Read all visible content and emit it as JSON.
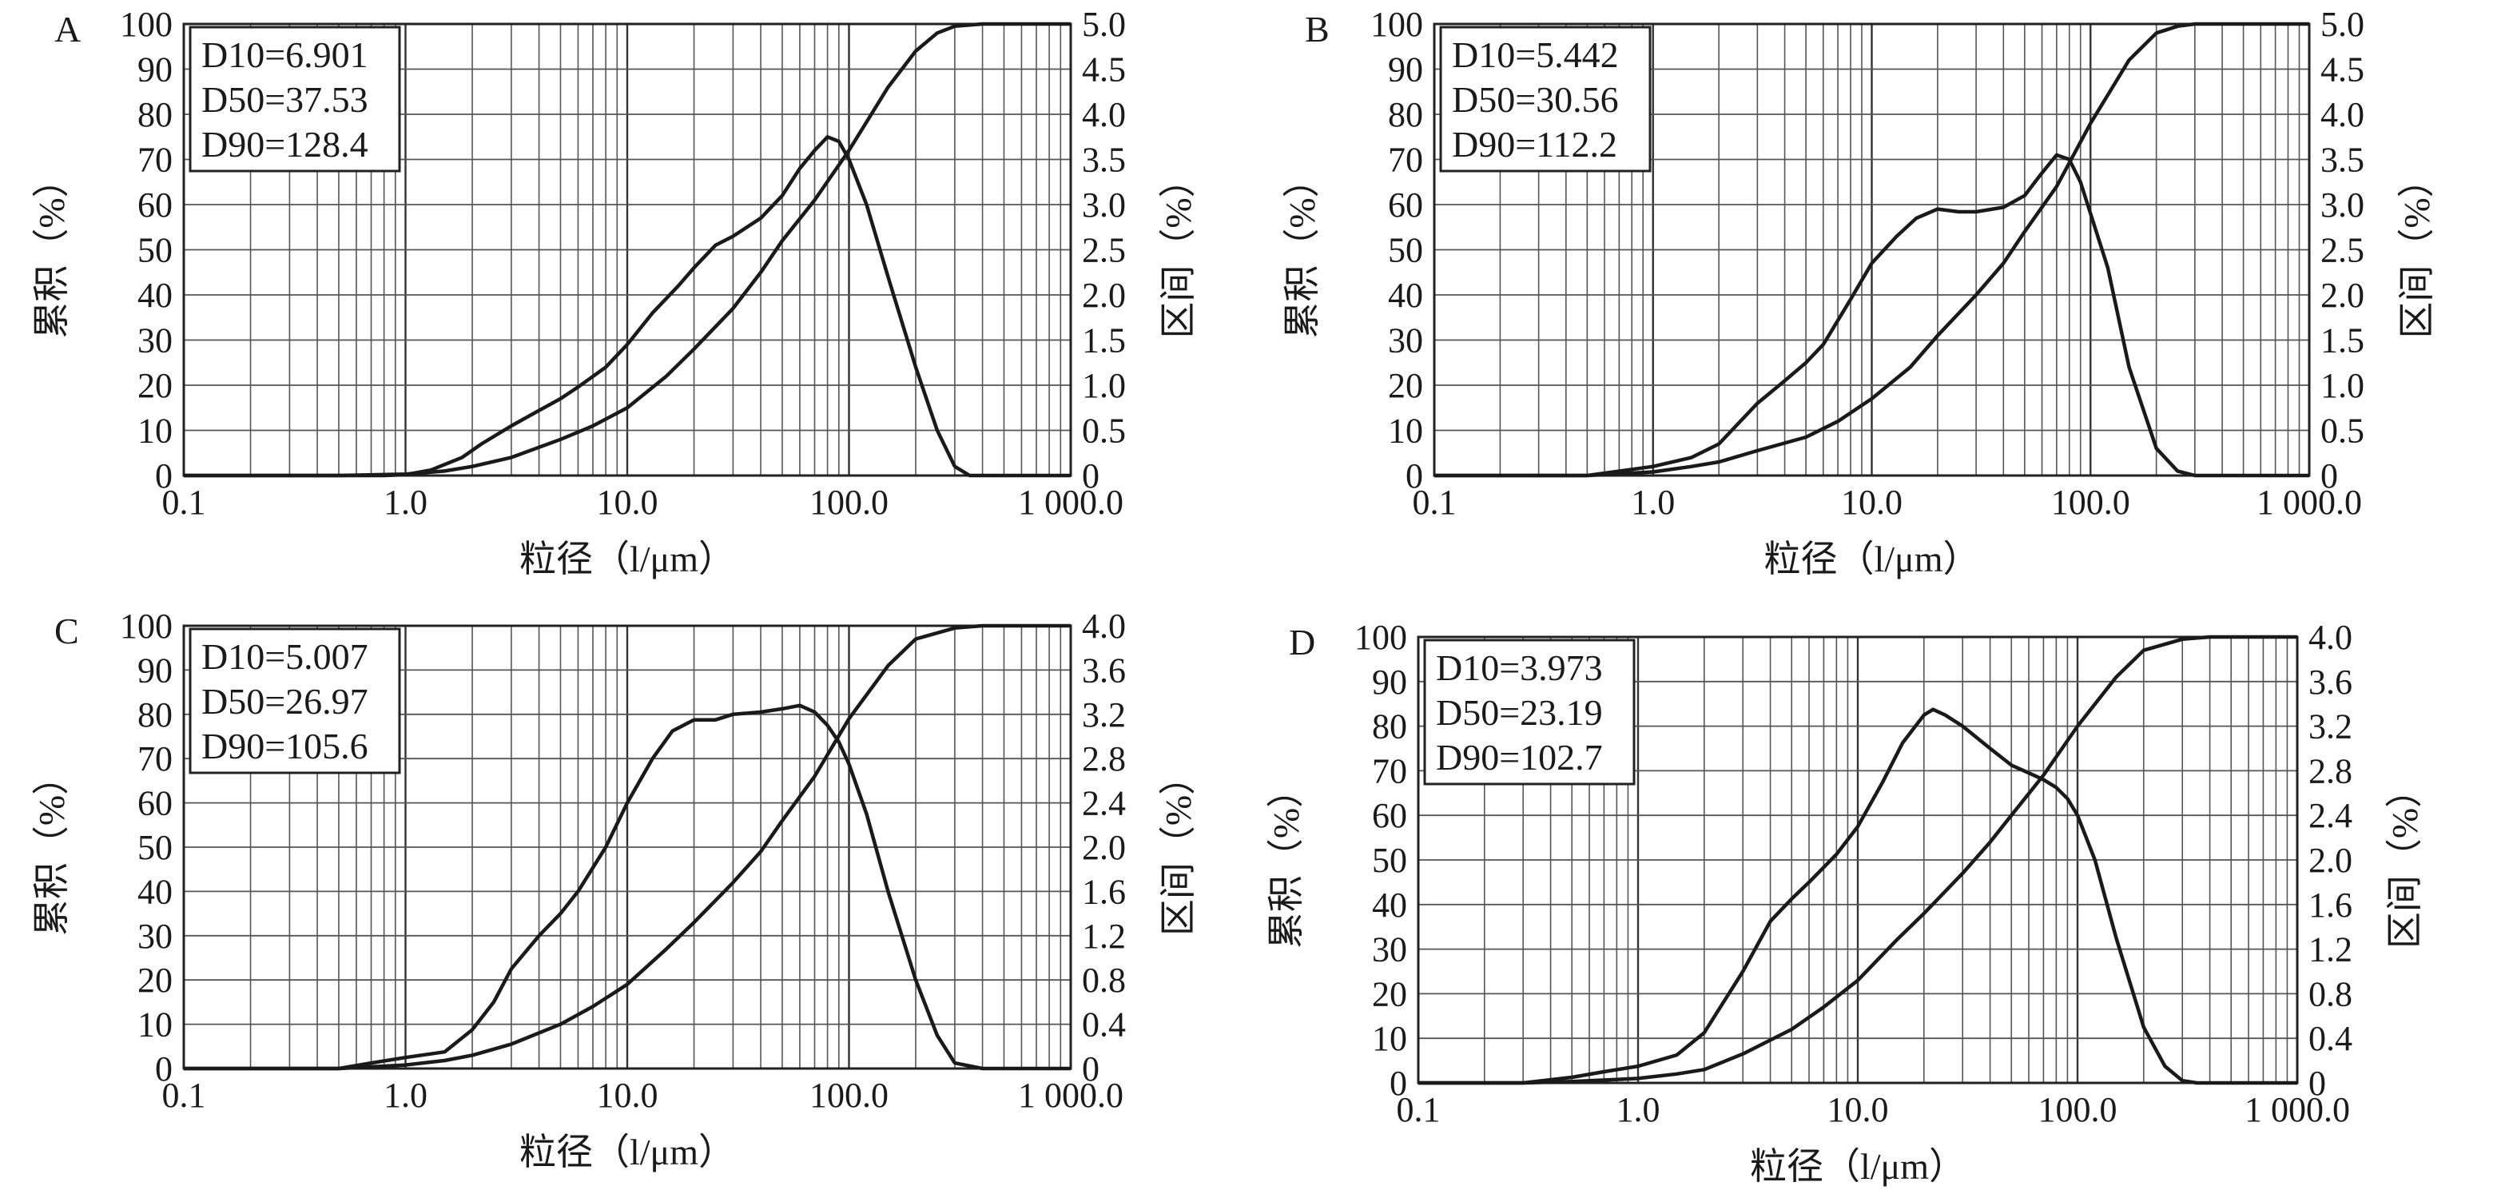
{
  "figure": {
    "ylabel_left": "累积（%）",
    "ylabel_right": "区间（%）"
  },
  "chart_data": [
    {
      "type": "line",
      "panel": "A",
      "xlabel": "粒径（l/μm）",
      "x_scale": "log",
      "xlim": [
        0.1,
        1000
      ],
      "x_ticks": [
        "0.1",
        "1.0",
        "10.0",
        "100.0",
        "1 000.0"
      ],
      "ylim_left": [
        0,
        100
      ],
      "y_ticks_left": [
        "0",
        "10",
        "20",
        "30",
        "40",
        "50",
        "60",
        "70",
        "80",
        "90",
        "100"
      ],
      "ylim_right": [
        0,
        5.0
      ],
      "y_ticks_right": [
        "0",
        "0.5",
        "1.0",
        "1.5",
        "2.0",
        "2.5",
        "3.0",
        "3.5",
        "4.0",
        "4.5",
        "5.0"
      ],
      "grid": true,
      "stats": [
        "D10=6.901",
        "D50=37.53",
        "D90=128.4"
      ],
      "series": [
        {
          "axis": "left",
          "points": [
            [
              0.1,
              0
            ],
            [
              0.5,
              0
            ],
            [
              1.0,
              0.3
            ],
            [
              1.5,
              1
            ],
            [
              2,
              2
            ],
            [
              3,
              4
            ],
            [
              5,
              8
            ],
            [
              7,
              11
            ],
            [
              10,
              15
            ],
            [
              15,
              22
            ],
            [
              20,
              28
            ],
            [
              30,
              37
            ],
            [
              40,
              45
            ],
            [
              50,
              52
            ],
            [
              70,
              61
            ],
            [
              100,
              72
            ],
            [
              150,
              86
            ],
            [
              200,
              94
            ],
            [
              250,
              98
            ],
            [
              300,
              99.5
            ],
            [
              400,
              100
            ],
            [
              1000,
              100
            ]
          ]
        },
        {
          "axis": "right",
          "points": [
            [
              0.1,
              0
            ],
            [
              0.8,
              0
            ],
            [
              1,
              0.01
            ],
            [
              1.3,
              0.06
            ],
            [
              1.8,
              0.2
            ],
            [
              2.2,
              0.35
            ],
            [
              3,
              0.55
            ],
            [
              4,
              0.72
            ],
            [
              5,
              0.85
            ],
            [
              6,
              0.98
            ],
            [
              8,
              1.2
            ],
            [
              10,
              1.45
            ],
            [
              13,
              1.8
            ],
            [
              17,
              2.1
            ],
            [
              20,
              2.3
            ],
            [
              25,
              2.55
            ],
            [
              30,
              2.65
            ],
            [
              40,
              2.85
            ],
            [
              50,
              3.1
            ],
            [
              60,
              3.4
            ],
            [
              70,
              3.6
            ],
            [
              80,
              3.75
            ],
            [
              90,
              3.7
            ],
            [
              100,
              3.5
            ],
            [
              120,
              3.0
            ],
            [
              150,
              2.2
            ],
            [
              200,
              1.2
            ],
            [
              250,
              0.5
            ],
            [
              300,
              0.1
            ],
            [
              350,
              0
            ],
            [
              1000,
              0
            ]
          ]
        }
      ]
    },
    {
      "type": "line",
      "panel": "B",
      "xlabel": "粒径（l/μm）",
      "x_scale": "log",
      "xlim": [
        0.1,
        1000
      ],
      "x_ticks": [
        "0.1",
        "1.0",
        "10.0",
        "100.0",
        "1 000.0"
      ],
      "ylim_left": [
        0,
        100
      ],
      "y_ticks_left": [
        "0",
        "10",
        "20",
        "30",
        "40",
        "50",
        "60",
        "70",
        "80",
        "90",
        "100"
      ],
      "ylim_right": [
        0,
        5.0
      ],
      "y_ticks_right": [
        "0",
        "0.5",
        "1.0",
        "1.5",
        "2.0",
        "2.5",
        "3.0",
        "3.5",
        "4.0",
        "4.5",
        "5.0"
      ],
      "grid": true,
      "stats": [
        "D10=5.442",
        "D50=30.56",
        "D90=112.2"
      ],
      "series": [
        {
          "axis": "left",
          "points": [
            [
              0.1,
              0
            ],
            [
              0.5,
              0
            ],
            [
              1,
              0.8
            ],
            [
              1.5,
              2
            ],
            [
              2,
              3
            ],
            [
              3,
              5.5
            ],
            [
              5,
              8.5
            ],
            [
              7,
              12
            ],
            [
              10,
              17
            ],
            [
              15,
              24
            ],
            [
              20,
              31
            ],
            [
              30,
              40
            ],
            [
              40,
              47
            ],
            [
              50,
              54
            ],
            [
              70,
              64
            ],
            [
              100,
              78
            ],
            [
              150,
              92
            ],
            [
              200,
              98
            ],
            [
              250,
              99.5
            ],
            [
              300,
              100
            ],
            [
              1000,
              100
            ]
          ]
        },
        {
          "axis": "right",
          "points": [
            [
              0.1,
              0
            ],
            [
              0.5,
              0
            ],
            [
              1,
              0.1
            ],
            [
              1.5,
              0.2
            ],
            [
              2,
              0.35
            ],
            [
              3,
              0.8
            ],
            [
              4,
              1.05
            ],
            [
              5,
              1.25
            ],
            [
              6,
              1.45
            ],
            [
              8,
              1.95
            ],
            [
              10,
              2.35
            ],
            [
              13,
              2.65
            ],
            [
              16,
              2.85
            ],
            [
              20,
              2.95
            ],
            [
              25,
              2.92
            ],
            [
              30,
              2.92
            ],
            [
              40,
              2.97
            ],
            [
              50,
              3.1
            ],
            [
              60,
              3.35
            ],
            [
              70,
              3.55
            ],
            [
              80,
              3.5
            ],
            [
              90,
              3.25
            ],
            [
              100,
              2.9
            ],
            [
              120,
              2.3
            ],
            [
              150,
              1.2
            ],
            [
              200,
              0.3
            ],
            [
              250,
              0.05
            ],
            [
              300,
              0
            ],
            [
              1000,
              0
            ]
          ]
        }
      ]
    },
    {
      "type": "line",
      "panel": "C",
      "xlabel": "粒径（l/μm）",
      "x_scale": "log",
      "xlim": [
        0.1,
        1000
      ],
      "x_ticks": [
        "0.1",
        "1.0",
        "10.0",
        "100.0",
        "1 000.0"
      ],
      "ylim_left": [
        0,
        100
      ],
      "y_ticks_left": [
        "0",
        "10",
        "20",
        "30",
        "40",
        "50",
        "60",
        "70",
        "80",
        "90",
        "100"
      ],
      "ylim_right": [
        0,
        4.0
      ],
      "y_ticks_right": [
        "0",
        "0.4",
        "0.8",
        "1.2",
        "1.6",
        "2.0",
        "2.4",
        "2.8",
        "3.2",
        "3.6",
        "4.0"
      ],
      "grid": true,
      "stats": [
        "D10=5.007",
        "D50=26.97",
        "D90=105.6"
      ],
      "series": [
        {
          "axis": "left",
          "points": [
            [
              0.1,
              0
            ],
            [
              0.5,
              0
            ],
            [
              1,
              0.8
            ],
            [
              1.5,
              1.8
            ],
            [
              2,
              3
            ],
            [
              3,
              5.5
            ],
            [
              5,
              10
            ],
            [
              7,
              14
            ],
            [
              10,
              19
            ],
            [
              15,
              27
            ],
            [
              20,
              33
            ],
            [
              30,
              42
            ],
            [
              40,
              49
            ],
            [
              50,
              56
            ],
            [
              70,
              66
            ],
            [
              100,
              79
            ],
            [
              150,
              91
            ],
            [
              200,
              97
            ],
            [
              300,
              99.5
            ],
            [
              400,
              100
            ],
            [
              1000,
              100
            ]
          ]
        },
        {
          "axis": "right",
          "points": [
            [
              0.1,
              0
            ],
            [
              0.5,
              0
            ],
            [
              0.7,
              0.05
            ],
            [
              1,
              0.1
            ],
            [
              1.5,
              0.15
            ],
            [
              2,
              0.35
            ],
            [
              2.5,
              0.6
            ],
            [
              3,
              0.9
            ],
            [
              4,
              1.2
            ],
            [
              5,
              1.4
            ],
            [
              6,
              1.6
            ],
            [
              8,
              2.0
            ],
            [
              10,
              2.4
            ],
            [
              13,
              2.8
            ],
            [
              16,
              3.05
            ],
            [
              20,
              3.15
            ],
            [
              25,
              3.15
            ],
            [
              30,
              3.2
            ],
            [
              40,
              3.22
            ],
            [
              50,
              3.25
            ],
            [
              60,
              3.28
            ],
            [
              70,
              3.22
            ],
            [
              80,
              3.1
            ],
            [
              90,
              2.95
            ],
            [
              100,
              2.75
            ],
            [
              120,
              2.3
            ],
            [
              150,
              1.6
            ],
            [
              200,
              0.8
            ],
            [
              250,
              0.3
            ],
            [
              300,
              0.05
            ],
            [
              400,
              0
            ],
            [
              1000,
              0
            ]
          ]
        }
      ]
    },
    {
      "type": "line",
      "panel": "D",
      "xlabel": "粒径（l/μm）",
      "x_scale": "log",
      "xlim": [
        0.1,
        1000
      ],
      "x_ticks": [
        "0.1",
        "1.0",
        "10.0",
        "100.0",
        "1 000.0"
      ],
      "ylim_left": [
        0,
        100
      ],
      "y_ticks_left": [
        "0",
        "10",
        "20",
        "30",
        "40",
        "50",
        "60",
        "70",
        "80",
        "90",
        "100"
      ],
      "ylim_right": [
        0,
        4.0
      ],
      "y_ticks_right": [
        "0",
        "0.4",
        "0.8",
        "1.2",
        "1.6",
        "2.0",
        "2.4",
        "2.8",
        "3.2",
        "3.6",
        "4.0"
      ],
      "grid": true,
      "stats": [
        "D10=3.973",
        "D50=23.19",
        "D90=102.7"
      ],
      "series": [
        {
          "axis": "left",
          "points": [
            [
              0.1,
              0
            ],
            [
              0.3,
              0
            ],
            [
              0.5,
              0.3
            ],
            [
              1,
              1
            ],
            [
              1.5,
              2
            ],
            [
              2,
              3
            ],
            [
              3,
              6.5
            ],
            [
              5,
              12
            ],
            [
              7,
              17
            ],
            [
              10,
              23
            ],
            [
              15,
              32
            ],
            [
              20,
              38
            ],
            [
              30,
              47
            ],
            [
              40,
              54
            ],
            [
              50,
              60
            ],
            [
              70,
              69
            ],
            [
              100,
              80
            ],
            [
              150,
              91
            ],
            [
              200,
              97
            ],
            [
              300,
              99.5
            ],
            [
              400,
              100
            ],
            [
              1000,
              100
            ]
          ]
        },
        {
          "axis": "right",
          "points": [
            [
              0.1,
              0
            ],
            [
              0.3,
              0
            ],
            [
              0.5,
              0.05
            ],
            [
              0.7,
              0.1
            ],
            [
              1,
              0.15
            ],
            [
              1.5,
              0.25
            ],
            [
              2,
              0.45
            ],
            [
              3,
              1.0
            ],
            [
              4,
              1.45
            ],
            [
              5,
              1.65
            ],
            [
              6,
              1.8
            ],
            [
              8,
              2.05
            ],
            [
              10,
              2.3
            ],
            [
              13,
              2.7
            ],
            [
              16,
              3.05
            ],
            [
              20,
              3.3
            ],
            [
              22,
              3.35
            ],
            [
              25,
              3.3
            ],
            [
              30,
              3.2
            ],
            [
              40,
              3.0
            ],
            [
              50,
              2.85
            ],
            [
              60,
              2.78
            ],
            [
              70,
              2.72
            ],
            [
              80,
              2.65
            ],
            [
              90,
              2.55
            ],
            [
              100,
              2.4
            ],
            [
              120,
              2.0
            ],
            [
              150,
              1.3
            ],
            [
              200,
              0.5
            ],
            [
              250,
              0.15
            ],
            [
              300,
              0.02
            ],
            [
              350,
              0
            ],
            [
              1000,
              0
            ]
          ]
        }
      ]
    }
  ]
}
